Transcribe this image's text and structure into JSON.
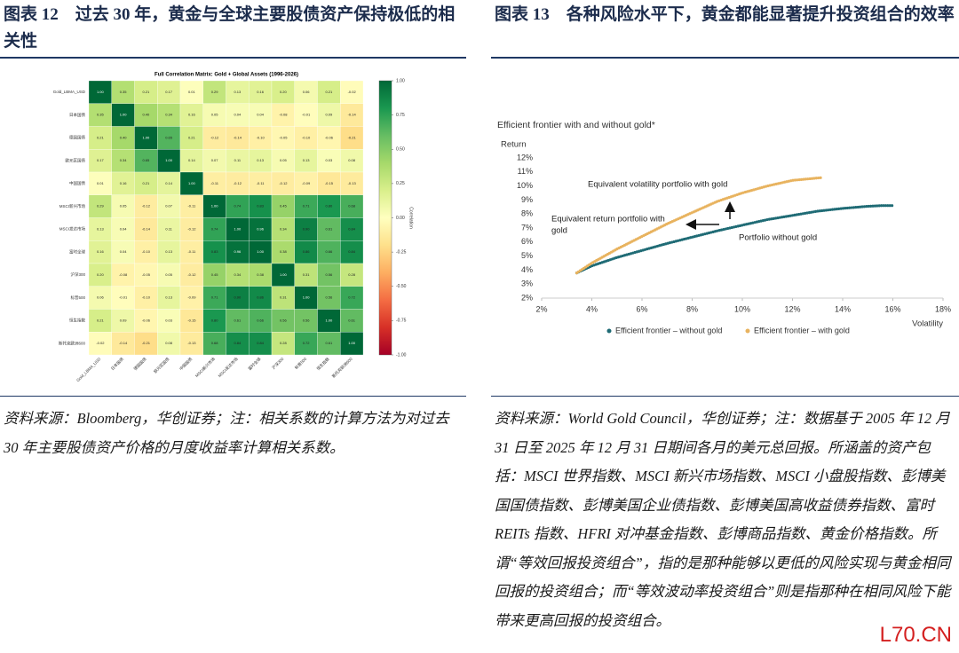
{
  "figures": [
    {
      "heading": "图表 12　过去 30 年，黄金与全球主要股债资产保持极低的相关性",
      "note": "资料来源：Bloomberg，华创证券；注：相关系数的计算方法为对过去 30 年主要股债资产价格的月度收益率计算相关系数。"
    },
    {
      "heading": "图表 13　各种风险水平下，黄金都能显著提升投资组合的效率",
      "note": "资料来源：World Gold Council，华创证券；注：数据基于 2005 年 12 月 31 日至 2025 年 12 月 31 日期间各月的美元总回报。所涵盖的资产包括：MSCI 世界指数、MSCI 新兴市场指数、MSCI 小盘股指数、彭博美国国债指数、彭博美国企业债指数、彭博美国高收益债券指数、富时 REITs 指数、HFRI 对冲基金指数、彭博商品指数、黄金价格指数。所谓“等效回报投资组合”，指的是那种能够以更低的风险实现与黄金相同回报的投资组合；而“等效波动率投资组合”则是指那种在相同风险下能带来更高回报的投资组合。"
    }
  ],
  "watermark": "L70.CN",
  "chart_data": [
    {
      "type": "heatmap",
      "title": "Full Correlation Matrix: Gold + Global Assets (1996-2026)",
      "categories": [
        "Gold_LBMA_USD",
        "日本国债",
        "德国国债",
        "欧元区国债",
        "中国国债",
        "MSCI新兴市场",
        "MSCI发达市场",
        "富时全球",
        "沪深300",
        "标普500",
        "恒生指数",
        "斯托克欧洲600"
      ],
      "values": [
        [
          1.0,
          0.35,
          0.21,
          0.17,
          0.01,
          0.29,
          0.13,
          0.16,
          0.2,
          0.06,
          0.21,
          -0.02
        ],
        [
          0.35,
          1.0,
          0.4,
          0.34,
          0.16,
          0.05,
          0.04,
          0.04,
          -0.08,
          -0.01,
          0.09,
          -0.14
        ],
        [
          0.21,
          0.4,
          1.0,
          0.65,
          0.21,
          -0.12,
          -0.14,
          -0.1,
          -0.05,
          -0.1,
          -0.06,
          -0.21
        ],
        [
          0.17,
          0.34,
          0.65,
          1.0,
          0.14,
          0.07,
          0.11,
          0.13,
          0.05,
          0.13,
          0.03,
          0.08
        ],
        [
          0.01,
          0.16,
          0.21,
          0.14,
          1.0,
          -0.11,
          -0.12,
          -0.11,
          -0.12,
          -0.09,
          -0.15,
          -0.13
        ],
        [
          0.29,
          0.05,
          -0.12,
          0.07,
          -0.11,
          1.0,
          0.74,
          0.83,
          0.45,
          0.71,
          0.8,
          0.68
        ],
        [
          0.13,
          0.04,
          -0.14,
          0.11,
          -0.12,
          0.74,
          1.0,
          0.96,
          0.34,
          0.9,
          0.61,
          0.84
        ],
        [
          0.16,
          0.04,
          -0.1,
          0.13,
          -0.11,
          0.83,
          0.96,
          1.0,
          0.38,
          0.86,
          0.66,
          0.84
        ],
        [
          0.2,
          -0.08,
          -0.05,
          0.05,
          -0.12,
          0.45,
          0.34,
          0.38,
          1.0,
          0.31,
          0.56,
          0.28
        ],
        [
          0.06,
          -0.01,
          -0.1,
          0.13,
          -0.09,
          0.71,
          0.9,
          0.86,
          0.31,
          1.0,
          0.56,
          0.72
        ],
        [
          0.21,
          0.09,
          -0.06,
          0.03,
          -0.15,
          0.8,
          0.61,
          0.66,
          0.56,
          0.56,
          1.0,
          0.61
        ],
        [
          -0.02,
          -0.14,
          -0.21,
          0.08,
          -0.13,
          0.68,
          0.84,
          0.84,
          0.28,
          0.72,
          0.61,
          1.0
        ]
      ],
      "value_labels": [
        [
          "1.00",
          "0.35",
          "0.21",
          "0.17",
          "0.01",
          "0.29",
          "0.13",
          "0.16",
          "0.20",
          "0.06",
          "0.21",
          "-0.02"
        ],
        [
          "0.35",
          "1.00",
          "0.40",
          "0.34",
          "0.16",
          "0.05",
          "0.04",
          "0.04",
          "-0.08",
          "-0.01",
          "0.09",
          "-0.14"
        ],
        [
          "0.21",
          "0.40",
          "1.00",
          "0.65",
          "0.21",
          "-0.12",
          "-0.14",
          "-0.10",
          "-0.05",
          "-0.10",
          "-0.06",
          "-0.21"
        ],
        [
          "0.17",
          "0.34",
          "0.65",
          "1.00",
          "0.14",
          "0.07",
          "0.11",
          "0.13",
          "0.05",
          "0.13",
          "0.03",
          "0.08"
        ],
        [
          "0.01",
          "0.16",
          "0.21",
          "0.14",
          "1.00",
          "-0.11",
          "-0.12",
          "-0.11",
          "-0.12",
          "-0.09",
          "-0.15",
          "-0.13"
        ],
        [
          "0.29",
          "0.05",
          "-0.12",
          "0.07",
          "-0.11",
          "1.00",
          "0.74",
          "0.83",
          "0.45",
          "0.71",
          "0.80",
          "0.68"
        ],
        [
          "0.13",
          "0.04",
          "-0.14",
          "0.11",
          "-0.12",
          "0.74",
          "1.00",
          "0.96",
          "0.34",
          "0.90",
          "0.61",
          "0.84"
        ],
        [
          "0.16",
          "0.04",
          "-0.10",
          "0.13",
          "-0.11",
          "0.83",
          "0.96",
          "1.00",
          "0.38",
          "0.86",
          "0.66",
          "0.84"
        ],
        [
          "0.20",
          "-0.08",
          "-0.05",
          "0.05",
          "-0.12",
          "0.45",
          "0.34",
          "0.38",
          "1.00",
          "0.31",
          "0.56",
          "0.28"
        ],
        [
          "0.06",
          "-0.01",
          "-0.10",
          "0.13",
          "-0.09",
          "0.71",
          "0.90",
          "0.86",
          "0.31",
          "1.00",
          "0.56",
          "0.72"
        ],
        [
          "0.21",
          "0.09",
          "-0.06",
          "0.03",
          "-0.15",
          "0.80",
          "0.61",
          "0.66",
          "0.56",
          "0.56",
          "1.00",
          "0.61"
        ],
        [
          "-0.02",
          "-0.14",
          "-0.21",
          "0.08",
          "-0.13",
          "0.68",
          "0.84",
          "0.84",
          "0.28",
          "0.72",
          "0.61",
          "1.00"
        ]
      ],
      "colorbar_label": "Correlation",
      "clim": [
        -1,
        1
      ],
      "cticks": [
        {
          "value": 1,
          "label": "1.00"
        },
        {
          "value": 0.75,
          "label": "0.75"
        },
        {
          "value": 0.5,
          "label": "0.50"
        },
        {
          "value": 0.25,
          "label": "0.25"
        },
        {
          "value": 0,
          "label": "0.00"
        },
        {
          "value": -0.25,
          "label": "-0.25"
        },
        {
          "value": -0.5,
          "label": "-0.50"
        },
        {
          "value": -0.75,
          "label": "-0.75"
        },
        {
          "value": -1,
          "label": "-1.00"
        }
      ],
      "colormap": [
        "#a50026",
        "#d73027",
        "#f46d43",
        "#fdae61",
        "#fee08b",
        "#ffffbf",
        "#d9ef8b",
        "#a6d96a",
        "#66bd63",
        "#1a9850",
        "#006837"
      ]
    },
    {
      "type": "line",
      "title": "Efficient frontier with and without gold*",
      "ylabel": "Return",
      "xlabel": "Volatility",
      "xlim": [
        2,
        18
      ],
      "xticks": [
        {
          "value": 2,
          "label": "2%"
        },
        {
          "value": 4,
          "label": "4%"
        },
        {
          "value": 6,
          "label": "6%"
        },
        {
          "value": 8,
          "label": "8%"
        },
        {
          "value": 10,
          "label": "10%"
        },
        {
          "value": 12,
          "label": "12%"
        },
        {
          "value": 14,
          "label": "14%"
        },
        {
          "value": 16,
          "label": "16%"
        },
        {
          "value": 18,
          "label": "18%"
        }
      ],
      "ylim": [
        2,
        12
      ],
      "yticks": [
        {
          "value": 2,
          "label": "2%"
        },
        {
          "value": 3,
          "label": "3%"
        },
        {
          "value": 4,
          "label": "4%"
        },
        {
          "value": 5,
          "label": "5%"
        },
        {
          "value": 6,
          "label": "6%"
        },
        {
          "value": 7,
          "label": "7%"
        },
        {
          "value": 8,
          "label": "8%"
        },
        {
          "value": 9,
          "label": "9%"
        },
        {
          "value": 10,
          "label": "10%"
        },
        {
          "value": 11,
          "label": "11%"
        },
        {
          "value": 12,
          "label": "12%"
        }
      ],
      "grid": false,
      "series": [
        {
          "name": "Efficient frontier – without gold",
          "color": "#1f6b75",
          "x": [
            3.4,
            4,
            5,
            6,
            7,
            8,
            9,
            10,
            11,
            12,
            13,
            14,
            15,
            15.6,
            16
          ],
          "values": [
            3.8,
            4.3,
            4.9,
            5.4,
            5.9,
            6.35,
            6.8,
            7.2,
            7.6,
            7.9,
            8.2,
            8.4,
            8.55,
            8.6,
            8.6
          ]
        },
        {
          "name": "Efficient frontier – with gold",
          "color": "#e8b35f",
          "x": [
            3.4,
            4,
            5,
            6,
            7,
            8,
            9,
            10,
            11,
            12,
            13.2
          ],
          "values": [
            3.8,
            4.5,
            5.5,
            6.4,
            7.3,
            8.1,
            8.9,
            9.5,
            10.0,
            10.4,
            10.6
          ]
        }
      ],
      "annotations": [
        {
          "lines": [
            "Equivalent volatility portfolio with gold"
          ]
        },
        {
          "lines": [
            "Equivalent return portfolio with",
            "gold"
          ]
        },
        {
          "lines": [
            "Portfolio without gold"
          ]
        }
      ]
    }
  ]
}
